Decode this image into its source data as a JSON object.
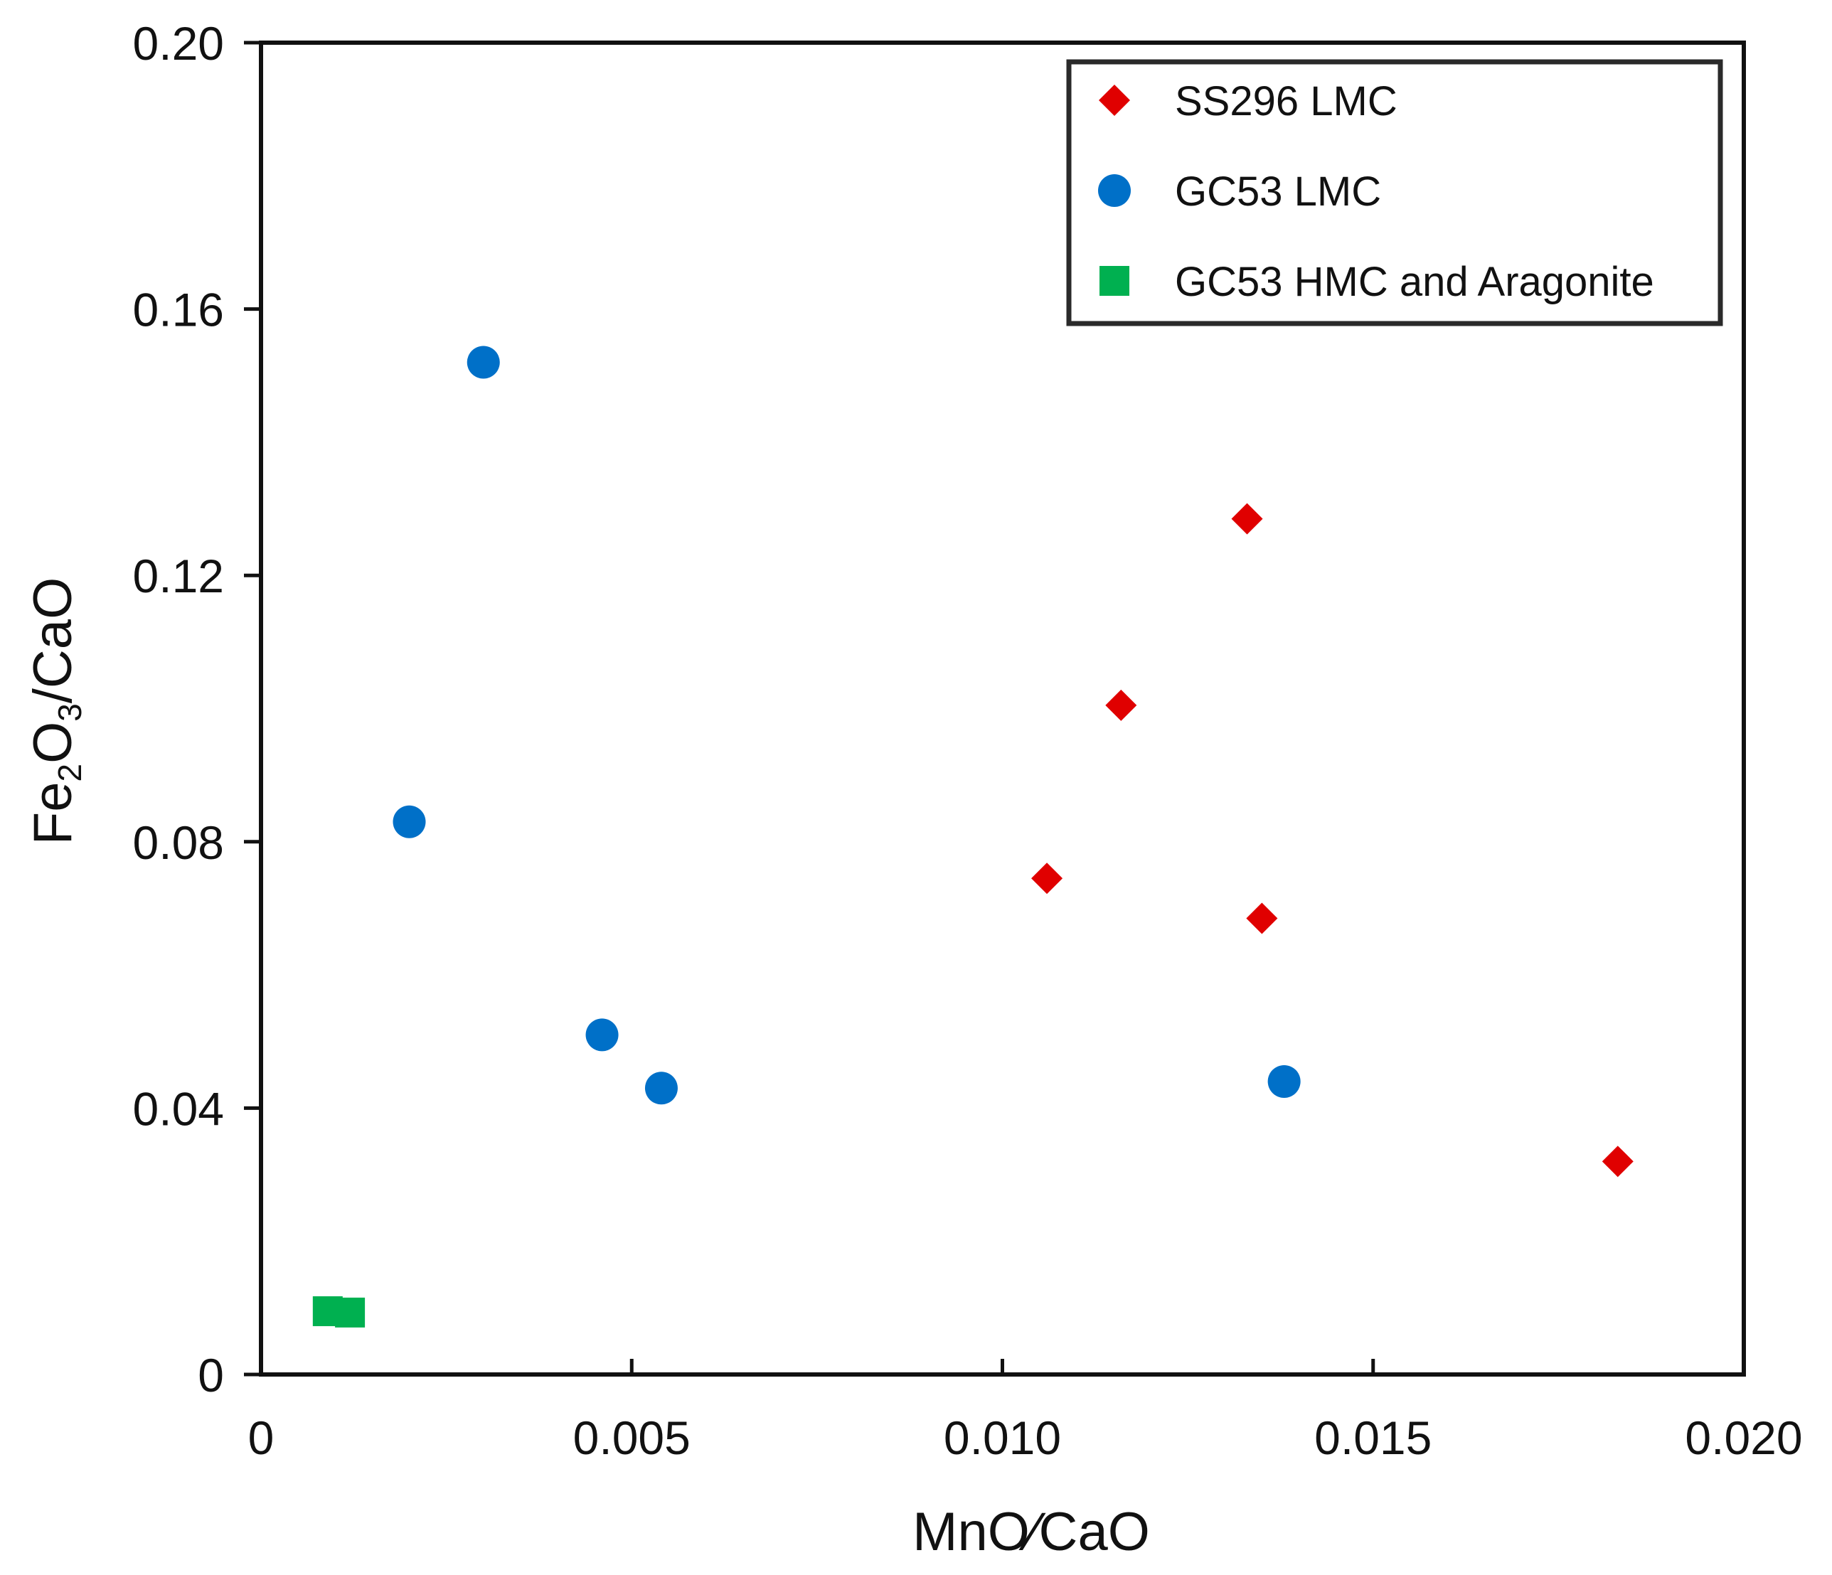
{
  "chart_data": {
    "type": "scatter",
    "title": "",
    "xlabel": "MnO∕CaO",
    "ylabel": {
      "prefix": "Fe",
      "sub1": "2",
      "mid": "O",
      "sub2": "3",
      "suffix": "/CaO"
    },
    "xlim": [
      0,
      0.02
    ],
    "ylim": [
      0,
      0.2
    ],
    "xticks": [
      {
        "value": 0,
        "label": "0"
      },
      {
        "value": 0.005,
        "label": "0.005"
      },
      {
        "value": 0.01,
        "label": "0.010"
      },
      {
        "value": 0.015,
        "label": "0.015"
      },
      {
        "value": 0.02,
        "label": "0.020"
      }
    ],
    "yticks": [
      {
        "value": 0,
        "label": "0"
      },
      {
        "value": 0.04,
        "label": "0.04"
      },
      {
        "value": 0.08,
        "label": "0.08"
      },
      {
        "value": 0.12,
        "label": "0.12"
      },
      {
        "value": 0.16,
        "label": "0.16"
      },
      {
        "value": 0.2,
        "label": "0.20"
      }
    ],
    "grid": false,
    "legend_position": "top-right",
    "series": [
      {
        "name": "SS296 LMC",
        "marker": "diamond",
        "color": "#e00000",
        "points": [
          {
            "x": 0.0133,
            "y": 0.1285
          },
          {
            "x": 0.0116,
            "y": 0.1005
          },
          {
            "x": 0.0106,
            "y": 0.0745
          },
          {
            "x": 0.0135,
            "y": 0.0685
          },
          {
            "x": 0.0183,
            "y": 0.032
          }
        ]
      },
      {
        "name": "GC53 LMC",
        "marker": "circle",
        "color": "#0070c8",
        "points": [
          {
            "x": 0.003,
            "y": 0.152
          },
          {
            "x": 0.002,
            "y": 0.083
          },
          {
            "x": 0.0046,
            "y": 0.051
          },
          {
            "x": 0.0054,
            "y": 0.043
          },
          {
            "x": 0.0138,
            "y": 0.044
          }
        ]
      },
      {
        "name": "GC53 HMC and Aragonite",
        "marker": "square",
        "color": "#00b050",
        "points": [
          {
            "x": 0.0009,
            "y": 0.0095
          },
          {
            "x": 0.0012,
            "y": 0.0093
          }
        ]
      }
    ]
  }
}
